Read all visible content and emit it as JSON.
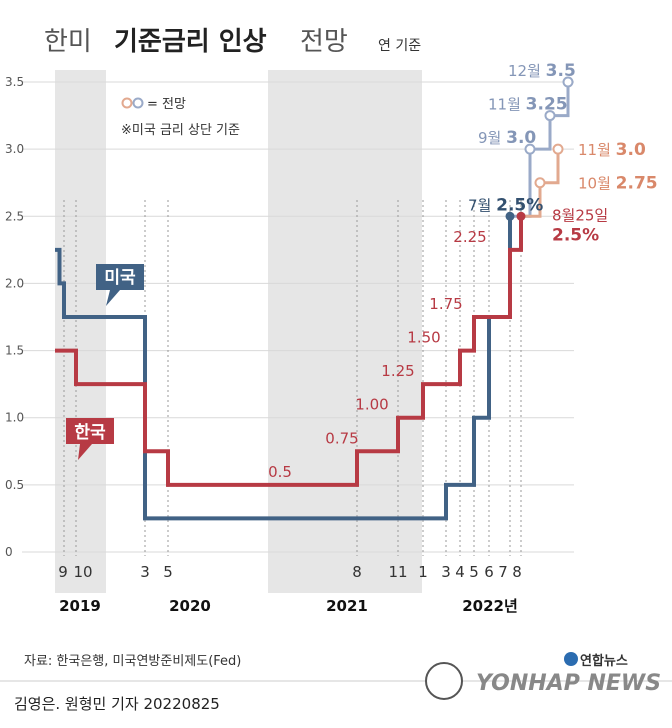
{
  "header": {
    "title_prefix": "한미",
    "title_main": "기준금리 인상",
    "title_suffix": "전망",
    "subtitle": "연 기준"
  },
  "legend": {
    "forecast_note": "= 전망",
    "us_note": "※미국 금리 상단 기준"
  },
  "footer": {
    "source": "자료: 한국은행, 미국연방준비제도(Fed)",
    "credit": "김영은. 원형민 기자 20220825",
    "logo_korean": "연합뉴스",
    "logo_english": "YONHAP NEWS"
  },
  "colors": {
    "korea": "#b73a44",
    "us": "#416285",
    "korea_forecast": "#e2a98f",
    "us_forecast": "#9aaac8",
    "year_band": "#e6e6e6"
  },
  "chart_data": {
    "type": "line",
    "step": true,
    "ylim": [
      0,
      3.5
    ],
    "yticks": [
      "0",
      "0.5",
      "1.0",
      "1.5",
      "2.0",
      "2.5",
      "3.0",
      "3.5"
    ],
    "x_ticks": [
      "9",
      "10",
      "3",
      "5",
      "8",
      "11",
      "1",
      "3",
      "4",
      "5",
      "6",
      "7",
      "8"
    ],
    "years": [
      "2019",
      "2020",
      "2021",
      "2022년"
    ],
    "series": [
      {
        "name": "한국",
        "x": [
          "2019-07",
          "2019-10",
          "2020-03",
          "2020-05",
          "2021-08",
          "2021-11",
          "2022-01",
          "2022-04",
          "2022-05",
          "2022-07",
          "2022-08"
        ],
        "y": [
          1.5,
          1.25,
          0.75,
          0.5,
          0.75,
          1.0,
          1.25,
          1.5,
          1.75,
          2.25,
          2.5
        ],
        "point_labels": [
          "",
          "",
          "",
          "0.5",
          "0.75",
          "1.00",
          "1.25",
          "1.50",
          "1.75",
          "2.25",
          ""
        ]
      },
      {
        "name": "미국",
        "x": [
          "2019-07",
          "2019-08",
          "2019-09",
          "2019-10",
          "2020-03",
          "2022-03",
          "2022-05",
          "2022-06",
          "2022-07"
        ],
        "y": [
          2.25,
          2.0,
          1.75,
          1.75,
          0.25,
          0.5,
          1.0,
          1.75,
          2.5
        ]
      }
    ],
    "forecasts": {
      "us": [
        {
          "month": "7월",
          "value": "2.5%"
        },
        {
          "month": "9월",
          "value": "3.0"
        },
        {
          "month": "11월",
          "value": "3.25"
        },
        {
          "month": "12월",
          "value": "3.5"
        }
      ],
      "korea": [
        {
          "month": "8월25일",
          "value": "2.5%"
        },
        {
          "month": "10월",
          "value": "2.75"
        },
        {
          "month": "11월",
          "value": "3.0"
        }
      ]
    }
  }
}
